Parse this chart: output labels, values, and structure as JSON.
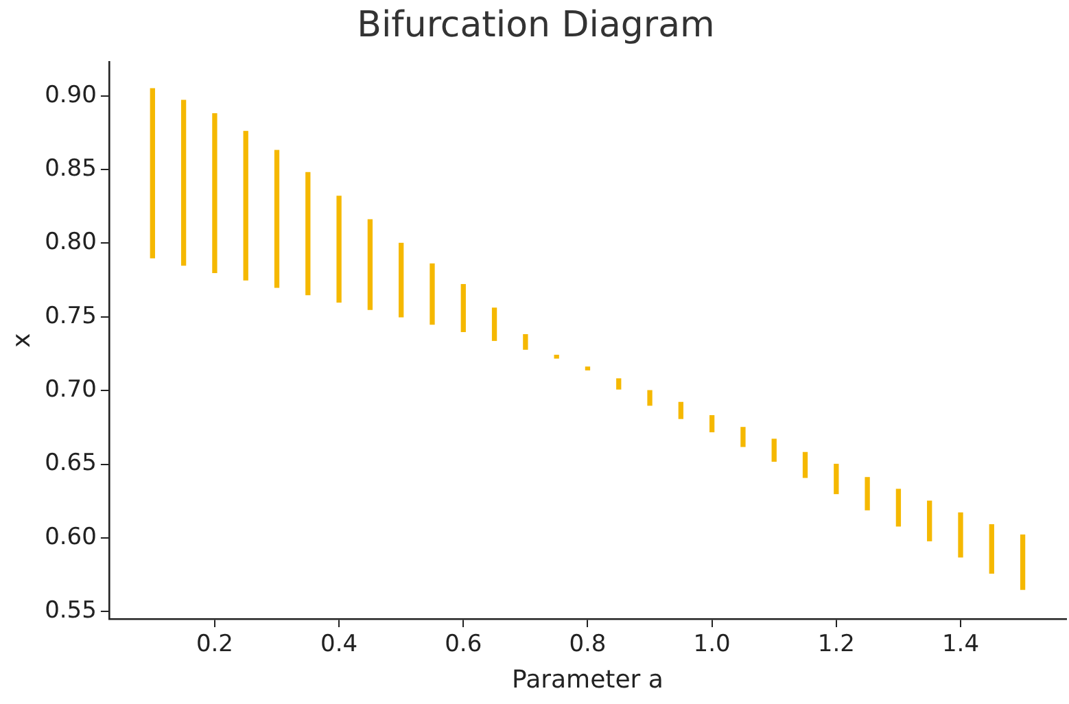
{
  "chart_data": {
    "type": "bar",
    "title": "Bifurcation Diagram",
    "xlabel": "Parameter a",
    "ylabel": "x",
    "x": [
      0.1,
      0.15,
      0.2,
      0.25,
      0.3,
      0.35,
      0.4,
      0.45,
      0.5,
      0.55,
      0.6,
      0.65,
      0.7,
      0.75,
      0.8,
      0.85,
      0.9,
      0.95,
      1.0,
      1.05,
      1.1,
      1.15,
      1.2,
      1.25,
      1.3,
      1.35,
      1.4,
      1.45,
      1.5
    ],
    "base": [
      0.905,
      0.897,
      0.888,
      0.876,
      0.863,
      0.848,
      0.832,
      0.816,
      0.8,
      0.786,
      0.772,
      0.756,
      0.738,
      0.724,
      0.714,
      0.701,
      0.69,
      0.681,
      0.672,
      0.662,
      0.652,
      0.641,
      0.63,
      0.619,
      0.608,
      0.598,
      0.587,
      0.576,
      0.565
    ],
    "values": [
      -0.115,
      -0.112,
      -0.108,
      -0.101,
      -0.093,
      -0.083,
      -0.072,
      -0.061,
      -0.05,
      -0.041,
      -0.032,
      -0.022,
      -0.01,
      -0.002,
      0.002,
      0.007,
      0.01,
      0.011,
      0.011,
      0.013,
      0.015,
      0.017,
      0.02,
      0.022,
      0.025,
      0.027,
      0.03,
      0.033,
      0.037
    ],
    "color": "#f5b800",
    "xlim": [
      0.03,
      1.57
    ],
    "xticks": [
      0.2,
      0.4,
      0.6,
      0.8,
      {
        "value": 1,
        "label": "1.0"
      },
      1.2,
      1.4
    ],
    "ylim": [
      0.545,
      0.923
    ],
    "yticks": [
      0.55,
      {
        "value": 0.6,
        "label": "0.60"
      },
      0.65,
      {
        "value": 0.7,
        "label": "0.70"
      },
      0.75,
      {
        "value": 0.8,
        "label": "0.80"
      },
      0.85,
      {
        "value": 0.9,
        "label": "0.90"
      }
    ],
    "grid": false,
    "legend": false
  }
}
